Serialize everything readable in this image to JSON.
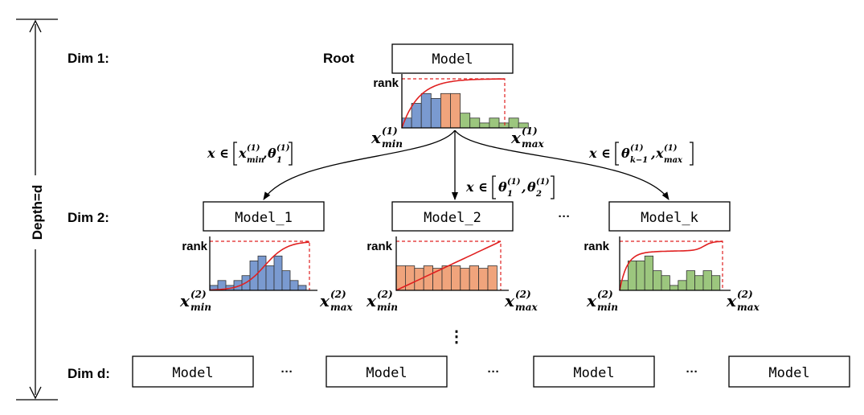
{
  "depth_label": "Depth=d",
  "dim_labels": [
    "Dim 1:",
    "Dim 2:",
    "Dim d:"
  ],
  "root_label": "Root",
  "rank_label": "rank",
  "root_model": {
    "label": "Model"
  },
  "level2_models": [
    {
      "label": "Model_1",
      "color": "#7a9ad0"
    },
    {
      "label": "Model_2",
      "color": "#f0a47c"
    },
    {
      "label": "Model_k",
      "color": "#9cc67e"
    }
  ],
  "leaf_models": [
    "Model",
    "Model",
    "Model",
    "Model"
  ],
  "ellipsis": "···",
  "vertical_ellipsis": "⋮",
  "axis_labels": {
    "root_min": {
      "base": "x",
      "sup": "(1)",
      "sub": "min"
    },
    "root_max": {
      "base": "x",
      "sup": "(1)",
      "sub": "max"
    },
    "l2_min": {
      "base": "x",
      "sup": "(2)",
      "sub": "min"
    },
    "l2_max": {
      "base": "x",
      "sup": "(2)",
      "sub": "max"
    }
  },
  "branch_conditions": {
    "left": "x ∈ [x(1)min, θ(1)1]",
    "middle": "x ∈ [θ(1)1, θ(1)2]",
    "right": "x ∈ [θ(1)k−1, x(1)max]"
  },
  "colors": {
    "blue": "#7a9ad0",
    "orange": "#f0a47c",
    "green": "#9cc67e",
    "cdf": "#e02020"
  },
  "chart_data": [
    {
      "type": "bar",
      "name": "root-histogram",
      "series": [
        {
          "values": [
            2,
            5,
            7,
            6
          ],
          "color": "#7a9ad0"
        },
        {
          "values": [
            7,
            7
          ],
          "color": "#f0a47c"
        },
        {
          "values": [
            3,
            2,
            1,
            2,
            1,
            2,
            1
          ],
          "color": "#9cc67e"
        }
      ],
      "cdf": "concave",
      "ylim": [
        0,
        10
      ]
    },
    {
      "type": "bar",
      "name": "model-1-histogram",
      "series": [
        {
          "values": [
            1,
            2,
            1,
            2,
            3,
            6,
            7,
            5,
            7,
            4,
            2,
            1
          ],
          "color": "#7a9ad0"
        }
      ],
      "cdf": "sigmoid",
      "ylim": [
        0,
        10
      ]
    },
    {
      "type": "bar",
      "name": "model-2-histogram",
      "series": [
        {
          "values": [
            5,
            5,
            4.5,
            5,
            4.5,
            5,
            5,
            4.5,
            5,
            4.5,
            5
          ],
          "color": "#f0a47c"
        }
      ],
      "cdf": "linear",
      "ylim": [
        0,
        10
      ]
    },
    {
      "type": "bar",
      "name": "model-k-histogram",
      "series": [
        {
          "values": [
            2,
            6,
            6,
            7,
            4,
            3,
            1,
            2,
            4,
            3,
            4,
            3
          ],
          "color": "#9cc67e"
        }
      ],
      "cdf": "stepped",
      "ylim": [
        0,
        10
      ]
    }
  ]
}
